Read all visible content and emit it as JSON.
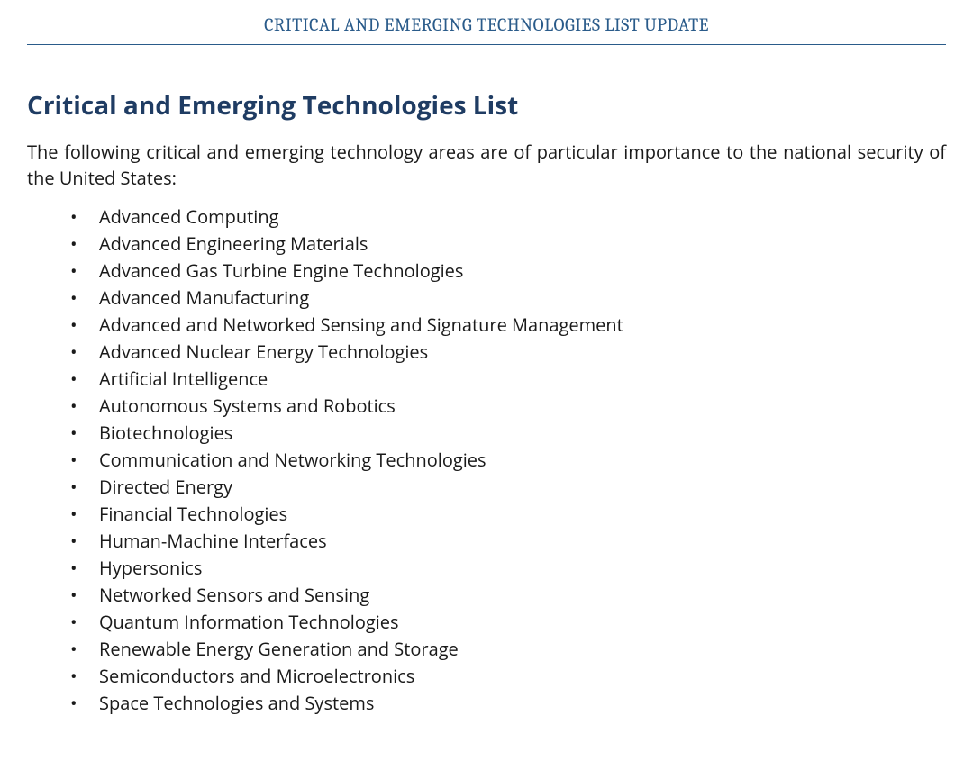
{
  "colors": {
    "header_text": "#2a5b8a",
    "header_border": "#2a5b8a",
    "heading_text": "#1f3c63",
    "body_text": "#1a1a1a",
    "background": "#ffffff"
  },
  "typography": {
    "header_fontsize": 20,
    "heading_fontsize": 28,
    "body_fontsize": 20,
    "list_fontsize": 20
  },
  "header": {
    "title": "CRITICAL AND EMERGING TECHNOLOGIES LIST UPDATE"
  },
  "main": {
    "heading": "Critical and Emerging Technologies List",
    "intro": "The following critical and emerging technology areas are of particular importance to the national security of the United States:",
    "items": [
      "Advanced Computing",
      "Advanced Engineering Materials",
      "Advanced Gas Turbine Engine Technologies",
      "Advanced Manufacturing",
      "Advanced and Networked Sensing and Signature Management",
      "Advanced Nuclear Energy Technologies",
      "Artificial Intelligence",
      "Autonomous Systems and Robotics",
      "Biotechnologies",
      "Communication and Networking Technologies",
      "Directed Energy",
      "Financial Technologies",
      "Human-Machine Interfaces",
      "Hypersonics",
      "Networked Sensors and Sensing",
      "Quantum Information Technologies",
      "Renewable Energy Generation and Storage",
      "Semiconductors and Microelectronics",
      "Space Technologies and Systems"
    ]
  }
}
